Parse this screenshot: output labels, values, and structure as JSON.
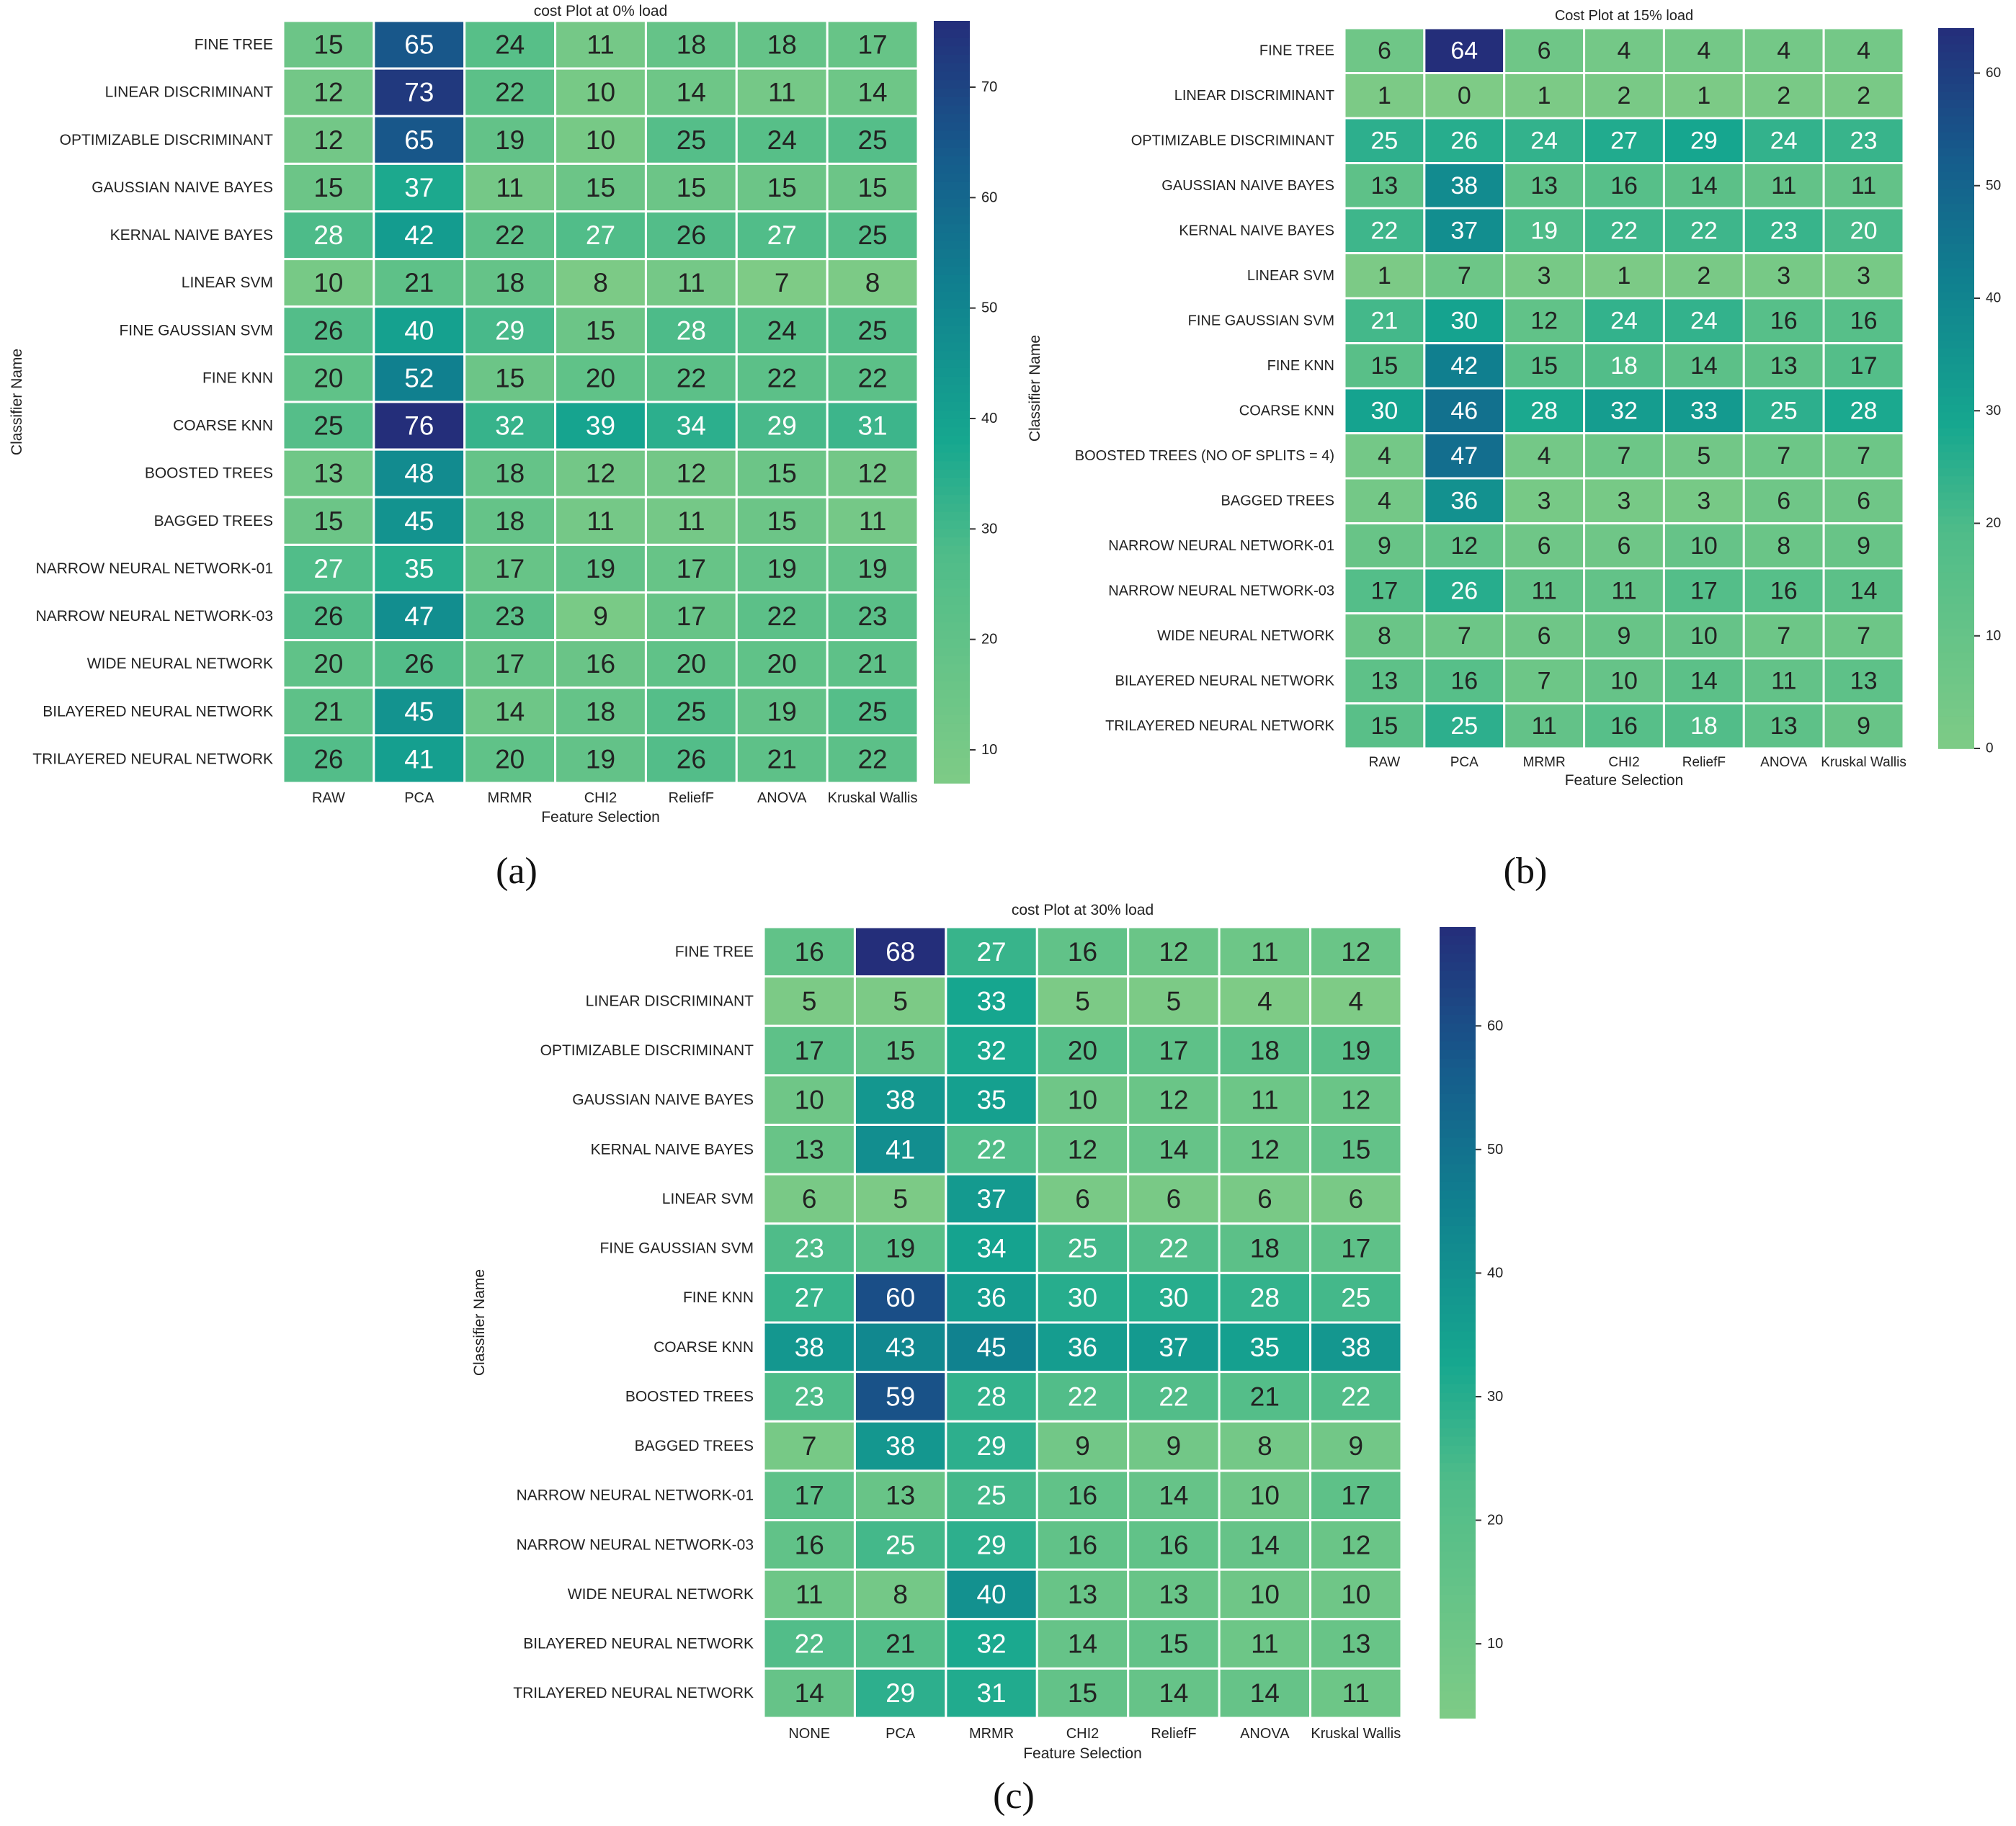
{
  "figure": {
    "panel_labels": [
      "(a)",
      "(b)",
      "(c)"
    ]
  },
  "colors": {
    "scale_low": "#7ecb86",
    "scale_mid": "#16a78f",
    "scale_high": "#242e7a",
    "text_light": "#ffffff",
    "text_dark": "#222222"
  },
  "chart_data": [
    {
      "type": "heatmap",
      "panel": "(a)",
      "title": "cost Plot at 0% load",
      "xlabel": "Feature Selection",
      "ylabel": "Classifier Name",
      "columns": [
        "RAW",
        "PCA",
        "MRMR",
        "CHI2",
        "ReliefF",
        "ANOVA",
        "Kruskal Wallis"
      ],
      "rows": [
        "FINE TREE",
        "LINEAR DISCRIMINANT",
        "OPTIMIZABLE DISCRIMINANT",
        "GAUSSIAN NAIVE BAYES",
        "KERNAL NAIVE BAYES",
        "LINEAR SVM",
        "FINE GAUSSIAN SVM",
        "FINE KNN",
        "COARSE KNN",
        "BOOSTED TREES",
        "BAGGED TREES",
        "NARROW NEURAL NETWORK-01",
        "NARROW NEURAL NETWORK-03",
        "WIDE NEURAL NETWORK",
        "BILAYERED NEURAL NETWORK",
        "TRILAYERED NEURAL NETWORK"
      ],
      "values": [
        [
          15,
          65,
          24,
          11,
          18,
          18,
          17
        ],
        [
          12,
          73,
          22,
          10,
          14,
          11,
          14
        ],
        [
          12,
          65,
          19,
          10,
          25,
          24,
          25
        ],
        [
          15,
          37,
          11,
          15,
          15,
          15,
          15
        ],
        [
          28,
          42,
          22,
          27,
          26,
          27,
          25
        ],
        [
          10,
          21,
          18,
          8,
          11,
          7,
          8
        ],
        [
          26,
          40,
          29,
          15,
          28,
          24,
          25
        ],
        [
          20,
          52,
          15,
          20,
          22,
          22,
          22
        ],
        [
          25,
          76,
          32,
          39,
          34,
          29,
          31
        ],
        [
          13,
          48,
          18,
          12,
          12,
          15,
          12
        ],
        [
          15,
          45,
          18,
          11,
          11,
          15,
          11
        ],
        [
          27,
          35,
          17,
          19,
          17,
          19,
          19
        ],
        [
          26,
          47,
          23,
          9,
          17,
          22,
          23
        ],
        [
          20,
          26,
          17,
          16,
          20,
          20,
          21
        ],
        [
          21,
          45,
          14,
          18,
          25,
          19,
          25
        ],
        [
          26,
          41,
          20,
          19,
          26,
          21,
          22
        ]
      ],
      "vmin": 7,
      "vmax": 76,
      "colorbar_ticks": [
        10,
        20,
        30,
        40,
        50,
        60,
        70
      ]
    },
    {
      "type": "heatmap",
      "panel": "(b)",
      "title": "Cost Plot at 15% load",
      "xlabel": "Feature Selection",
      "ylabel": "Classifier Name",
      "columns": [
        "RAW",
        "PCA",
        "MRMR",
        "CHI2",
        "ReliefF",
        "ANOVA",
        "Kruskal Wallis"
      ],
      "rows": [
        "FINE TREE",
        "LINEAR DISCRIMINANT",
        "OPTIMIZABLE DISCRIMINANT",
        "GAUSSIAN NAIVE BAYES",
        "KERNAL NAIVE BAYES",
        "LINEAR SVM",
        "FINE GAUSSIAN SVM",
        "FINE KNN",
        "COARSE KNN",
        "BOOSTED TREES (NO OF SPLITS = 4)",
        "BAGGED TREES",
        "NARROW NEURAL NETWORK-01",
        "NARROW NEURAL NETWORK-03",
        "WIDE NEURAL NETWORK",
        "BILAYERED NEURAL NETWORK",
        "TRILAYERED NEURAL NETWORK"
      ],
      "values": [
        [
          6,
          64,
          6,
          4,
          4,
          4,
          4
        ],
        [
          1,
          0,
          1,
          2,
          1,
          2,
          2
        ],
        [
          25,
          26,
          24,
          27,
          29,
          24,
          23
        ],
        [
          13,
          38,
          13,
          16,
          14,
          11,
          11
        ],
        [
          22,
          37,
          19,
          22,
          22,
          23,
          20
        ],
        [
          1,
          7,
          3,
          1,
          2,
          3,
          3
        ],
        [
          21,
          30,
          12,
          24,
          24,
          16,
          16
        ],
        [
          15,
          42,
          15,
          18,
          14,
          13,
          17
        ],
        [
          30,
          46,
          28,
          32,
          33,
          25,
          28
        ],
        [
          4,
          47,
          4,
          7,
          5,
          7,
          7
        ],
        [
          4,
          36,
          3,
          3,
          3,
          6,
          6
        ],
        [
          9,
          12,
          6,
          6,
          10,
          8,
          9
        ],
        [
          17,
          26,
          11,
          11,
          17,
          16,
          14
        ],
        [
          8,
          7,
          6,
          9,
          10,
          7,
          7
        ],
        [
          13,
          16,
          7,
          10,
          14,
          11,
          13
        ],
        [
          15,
          25,
          11,
          16,
          18,
          13,
          9
        ]
      ],
      "vmin": 0,
      "vmax": 64,
      "colorbar_ticks": [
        0,
        10,
        20,
        30,
        40,
        50,
        60
      ]
    },
    {
      "type": "heatmap",
      "panel": "(c)",
      "title": "cost Plot at 30% load",
      "xlabel": "Feature Selection",
      "ylabel": "Classifier Name",
      "columns": [
        "NONE",
        "PCA",
        "MRMR",
        "CHI2",
        "ReliefF",
        "ANOVA",
        "Kruskal Wallis"
      ],
      "rows": [
        "FINE TREE",
        "LINEAR DISCRIMINANT",
        "OPTIMIZABLE DISCRIMINANT",
        "GAUSSIAN NAIVE BAYES",
        "KERNAL NAIVE BAYES",
        "LINEAR SVM",
        "FINE GAUSSIAN SVM",
        "FINE KNN",
        "COARSE KNN",
        "BOOSTED TREES",
        "BAGGED TREES",
        "NARROW NEURAL NETWORK-01",
        "NARROW NEURAL NETWORK-03",
        "WIDE NEURAL NETWORK",
        "BILAYERED NEURAL NETWORK",
        "TRILAYERED NEURAL NETWORK"
      ],
      "values": [
        [
          16,
          68,
          27,
          16,
          12,
          11,
          12
        ],
        [
          5,
          5,
          33,
          5,
          5,
          4,
          4
        ],
        [
          17,
          15,
          32,
          20,
          17,
          18,
          19
        ],
        [
          10,
          38,
          35,
          10,
          12,
          11,
          12
        ],
        [
          13,
          41,
          22,
          12,
          14,
          12,
          15
        ],
        [
          6,
          5,
          37,
          6,
          6,
          6,
          6
        ],
        [
          23,
          19,
          34,
          25,
          22,
          18,
          17
        ],
        [
          27,
          60,
          36,
          30,
          30,
          28,
          25
        ],
        [
          38,
          43,
          45,
          36,
          37,
          35,
          38
        ],
        [
          23,
          59,
          28,
          22,
          22,
          21,
          22
        ],
        [
          7,
          38,
          29,
          9,
          9,
          8,
          9
        ],
        [
          17,
          13,
          25,
          16,
          14,
          10,
          17
        ],
        [
          16,
          25,
          29,
          16,
          16,
          14,
          12
        ],
        [
          11,
          8,
          40,
          13,
          13,
          10,
          10
        ],
        [
          22,
          21,
          32,
          14,
          15,
          11,
          13
        ],
        [
          14,
          29,
          31,
          15,
          14,
          14,
          11
        ]
      ],
      "vmin": 4,
      "vmax": 68,
      "colorbar_ticks": [
        10,
        20,
        30,
        40,
        50,
        60
      ]
    }
  ]
}
